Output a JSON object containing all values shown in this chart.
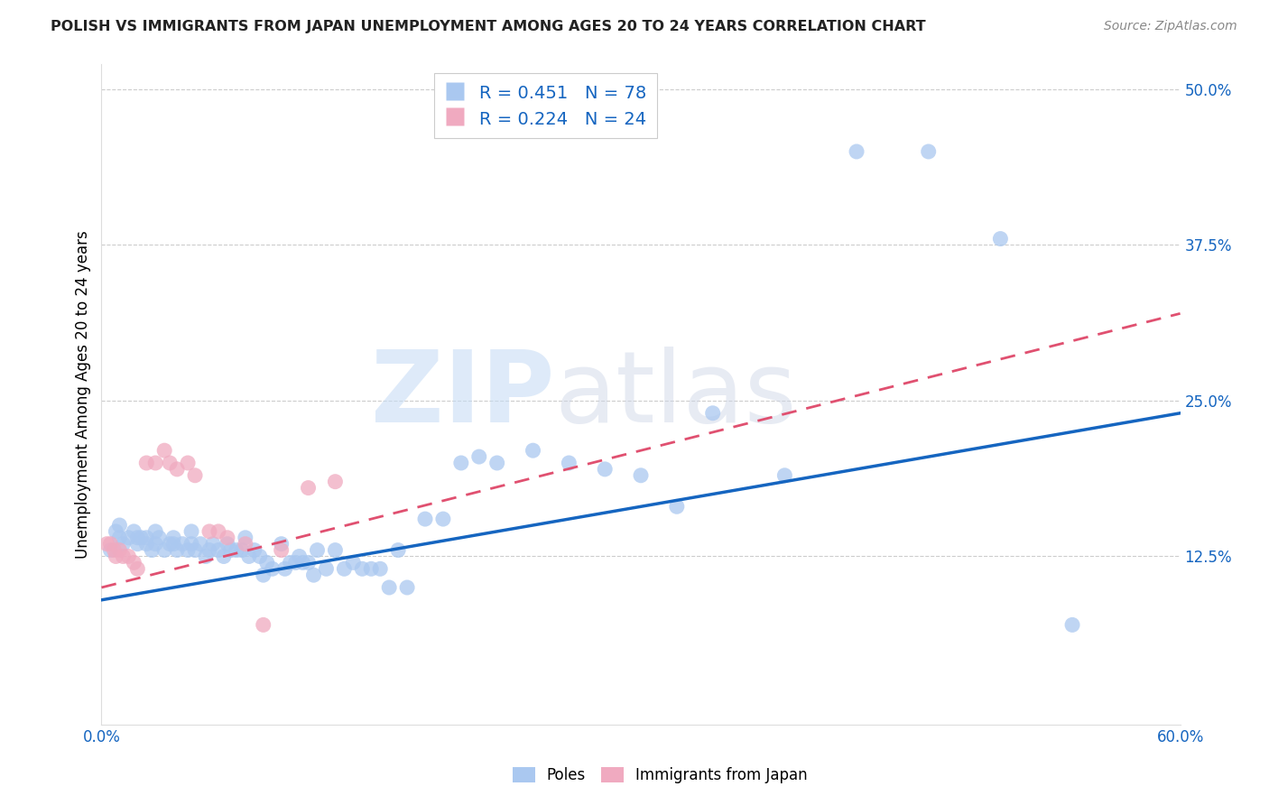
{
  "title": "POLISH VS IMMIGRANTS FROM JAPAN UNEMPLOYMENT AMONG AGES 20 TO 24 YEARS CORRELATION CHART",
  "source": "Source: ZipAtlas.com",
  "ylabel": "Unemployment Among Ages 20 to 24 years",
  "xlim": [
    0.0,
    0.6
  ],
  "ylim": [
    -0.01,
    0.52
  ],
  "xticks": [
    0.0,
    0.1,
    0.2,
    0.3,
    0.4,
    0.5,
    0.6
  ],
  "xticklabels": [
    "0.0%",
    "",
    "",
    "",
    "",
    "",
    "60.0%"
  ],
  "ytick_positions": [
    0.125,
    0.25,
    0.375,
    0.5
  ],
  "ytick_labels": [
    "12.5%",
    "25.0%",
    "37.5%",
    "50.0%"
  ],
  "poles_color": "#aac8f0",
  "japan_color": "#f0aac0",
  "poles_line_color": "#1565c0",
  "japan_line_color": "#e05070",
  "R_poles": 0.451,
  "N_poles": 78,
  "R_japan": 0.224,
  "N_japan": 24,
  "poles_x": [
    0.005,
    0.008,
    0.01,
    0.01,
    0.012,
    0.015,
    0.018,
    0.02,
    0.02,
    0.022,
    0.025,
    0.025,
    0.028,
    0.03,
    0.03,
    0.032,
    0.035,
    0.038,
    0.04,
    0.04,
    0.042,
    0.045,
    0.048,
    0.05,
    0.05,
    0.052,
    0.055,
    0.058,
    0.06,
    0.062,
    0.065,
    0.068,
    0.07,
    0.072,
    0.075,
    0.078,
    0.08,
    0.082,
    0.085,
    0.088,
    0.09,
    0.092,
    0.095,
    0.1,
    0.102,
    0.105,
    0.108,
    0.11,
    0.112,
    0.115,
    0.118,
    0.12,
    0.125,
    0.13,
    0.135,
    0.14,
    0.145,
    0.15,
    0.155,
    0.16,
    0.165,
    0.17,
    0.18,
    0.19,
    0.2,
    0.21,
    0.22,
    0.24,
    0.26,
    0.28,
    0.3,
    0.32,
    0.34,
    0.38,
    0.42,
    0.46,
    0.5,
    0.54
  ],
  "poles_y": [
    0.13,
    0.145,
    0.14,
    0.15,
    0.135,
    0.14,
    0.145,
    0.14,
    0.135,
    0.14,
    0.14,
    0.135,
    0.13,
    0.145,
    0.135,
    0.14,
    0.13,
    0.135,
    0.135,
    0.14,
    0.13,
    0.135,
    0.13,
    0.145,
    0.135,
    0.13,
    0.135,
    0.125,
    0.13,
    0.135,
    0.13,
    0.125,
    0.135,
    0.13,
    0.13,
    0.13,
    0.14,
    0.125,
    0.13,
    0.125,
    0.11,
    0.12,
    0.115,
    0.135,
    0.115,
    0.12,
    0.12,
    0.125,
    0.12,
    0.12,
    0.11,
    0.13,
    0.115,
    0.13,
    0.115,
    0.12,
    0.115,
    0.115,
    0.115,
    0.1,
    0.13,
    0.1,
    0.155,
    0.155,
    0.2,
    0.205,
    0.2,
    0.21,
    0.2,
    0.195,
    0.19,
    0.165,
    0.24,
    0.19,
    0.45,
    0.45,
    0.38,
    0.07
  ],
  "japan_x": [
    0.003,
    0.005,
    0.007,
    0.008,
    0.01,
    0.012,
    0.015,
    0.018,
    0.02,
    0.025,
    0.03,
    0.035,
    0.038,
    0.042,
    0.048,
    0.052,
    0.06,
    0.065,
    0.07,
    0.08,
    0.09,
    0.1,
    0.115,
    0.13
  ],
  "japan_y": [
    0.135,
    0.135,
    0.13,
    0.125,
    0.13,
    0.125,
    0.125,
    0.12,
    0.115,
    0.2,
    0.2,
    0.21,
    0.2,
    0.195,
    0.2,
    0.19,
    0.145,
    0.145,
    0.14,
    0.135,
    0.07,
    0.13,
    0.18,
    0.185
  ]
}
